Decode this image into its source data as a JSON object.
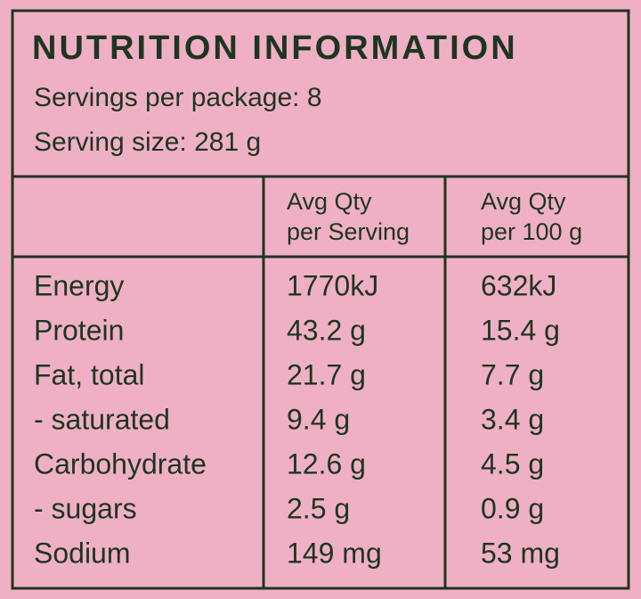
{
  "header": {
    "title": "NUTRITION INFORMATION",
    "servings_per_package": "Servings per package: 8",
    "serving_size": "Serving size: 281 g"
  },
  "table": {
    "column_headers": [
      [
        "Avg Qty",
        "per Serving"
      ],
      [
        "Avg Qty",
        "per 100 g"
      ]
    ],
    "rows": [
      [
        "Energy",
        "1770kJ",
        "632kJ"
      ],
      [
        "Protein",
        "43.2 g",
        "15.4 g"
      ],
      [
        "Fat, total",
        "21.7 g",
        "7.7 g"
      ],
      [
        "- saturated",
        "9.4 g",
        "3.4 g"
      ],
      [
        "Carbohydrate",
        "12.6 g",
        "4.5 g"
      ],
      [
        "- sugars",
        "2.5 g",
        "0.9 g"
      ],
      [
        "Sodium",
        "149 mg",
        "53 mg"
      ]
    ]
  }
}
